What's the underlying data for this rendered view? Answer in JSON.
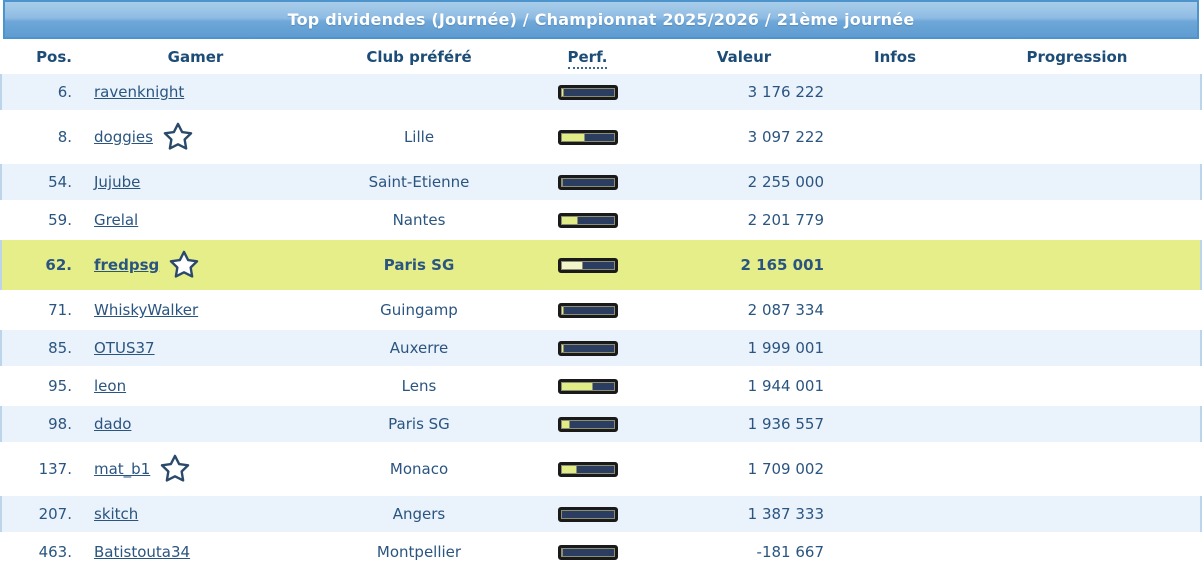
{
  "title": "Top dividendes (Journée) / Championnat 2025/2026 / 21ème journée",
  "colors": {
    "title_bg_top": "#A9CDEA",
    "title_bg_bottom": "#5E9CD1",
    "title_border": "#4D94CC",
    "title_text": "#FFFFFF",
    "header_text": "#1D4C77",
    "body_text": "#2A5580",
    "row_alt_bg": "#EAF2FC",
    "row_highlight_bg": "#E6EE8A",
    "bar_track_navy": "#2B3D61",
    "bar_fill_yellow": "#E2EC86",
    "bar_fill_pale": "#F2F6CA",
    "bar_border": "#1A1A1A",
    "side_rail": "#BDD5EB"
  },
  "table": {
    "headers": [
      {
        "key": "pos",
        "label": "Pos."
      },
      {
        "key": "gamer",
        "label": "Gamer"
      },
      {
        "key": "club",
        "label": "Club préféré"
      },
      {
        "key": "perf",
        "label": "Perf."
      },
      {
        "key": "valeur",
        "label": "Valeur"
      },
      {
        "key": "infos",
        "label": "Infos"
      },
      {
        "key": "progression",
        "label": "Progression"
      }
    ],
    "rows": [
      {
        "pos": "6.",
        "gamer": "ravenknight",
        "star": false,
        "club": "",
        "perf_pct": 6,
        "valeur": "3 176 222",
        "infos": "",
        "progression": "",
        "highlight": false
      },
      {
        "pos": "8.",
        "gamer": "doggies",
        "star": true,
        "club": "Lille",
        "perf_pct": 45,
        "valeur": "3 097 222",
        "infos": "",
        "progression": "",
        "highlight": false
      },
      {
        "pos": "54.",
        "gamer": "Jujube",
        "star": false,
        "club": "Saint-Etienne",
        "perf_pct": 5,
        "valeur": "2 255 000",
        "infos": "",
        "progression": "",
        "highlight": false
      },
      {
        "pos": "59.",
        "gamer": "Grelal",
        "star": false,
        "club": "Nantes",
        "perf_pct": 32,
        "valeur": "2 201 779",
        "infos": "",
        "progression": "",
        "highlight": false
      },
      {
        "pos": "62.",
        "gamer": "fredpsg",
        "star": true,
        "club": "Paris SG",
        "perf_pct": 41,
        "valeur": "2 165 001",
        "infos": "",
        "progression": "",
        "highlight": true
      },
      {
        "pos": "71.",
        "gamer": "WhiskyWalker",
        "star": false,
        "club": "Guingamp",
        "perf_pct": 7,
        "valeur": "2 087 334",
        "infos": "",
        "progression": "",
        "highlight": false
      },
      {
        "pos": "85.",
        "gamer": "OTUS37",
        "star": false,
        "club": "Auxerre",
        "perf_pct": 7,
        "valeur": "1 999 001",
        "infos": "",
        "progression": "",
        "highlight": false
      },
      {
        "pos": "95.",
        "gamer": "leon",
        "star": false,
        "club": "Lens",
        "perf_pct": 61,
        "valeur": "1 944 001",
        "infos": "",
        "progression": "",
        "highlight": false
      },
      {
        "pos": "98.",
        "gamer": "dado",
        "star": false,
        "club": "Paris SG",
        "perf_pct": 18,
        "valeur": "1 936 557",
        "infos": "",
        "progression": "",
        "highlight": false
      },
      {
        "pos": "137.",
        "gamer": "mat_b1",
        "star": true,
        "club": "Monaco",
        "perf_pct": 30,
        "valeur": "1 709 002",
        "infos": "",
        "progression": "",
        "highlight": false
      },
      {
        "pos": "207.",
        "gamer": "skitch",
        "star": false,
        "club": "Angers",
        "perf_pct": 3,
        "valeur": "1 387 333",
        "infos": "",
        "progression": "",
        "highlight": false
      },
      {
        "pos": "463.",
        "gamer": "Batistouta34",
        "star": false,
        "club": "Montpellier",
        "perf_pct": 5,
        "valeur": "-181 667",
        "infos": "",
        "progression": "",
        "highlight": false
      }
    ]
  },
  "icons": {
    "favorite_star": "star-outline"
  }
}
